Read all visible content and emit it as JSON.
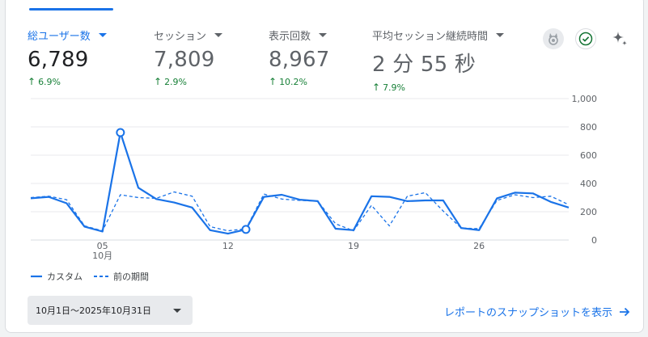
{
  "metrics": [
    {
      "label": "総ユーザー数",
      "value": "6,789",
      "change": "6.9%",
      "active": true
    },
    {
      "label": "セッション",
      "value": "7,809",
      "change": "2.9%",
      "active": false
    },
    {
      "label": "表示回数",
      "value": "8,967",
      "change": "10.2%",
      "active": false
    },
    {
      "label": "平均セッション継続時間",
      "value": "2 分 55 秒",
      "change": "7.9%",
      "active": false
    }
  ],
  "icons": [
    "insights-badge-icon",
    "check-circle-icon",
    "sparkle-icon"
  ],
  "colors": {
    "accent": "#1a73e8",
    "positive": "#188038",
    "grid": "#e8eaed"
  },
  "chart_data": {
    "type": "line",
    "x_tick_labels": [
      "05",
      "12",
      "19",
      "26"
    ],
    "x_month_label": "10月",
    "y_tick_labels": [
      "0",
      "200",
      "400",
      "600",
      "800",
      "1,000"
    ],
    "ylim": [
      0,
      1000
    ],
    "grid": true,
    "legend_position": "bottom-left",
    "x": [
      1,
      2,
      3,
      4,
      5,
      6,
      7,
      8,
      9,
      10,
      11,
      12,
      13,
      14,
      15,
      16,
      17,
      18,
      19,
      20,
      21,
      22,
      23,
      24,
      25,
      26,
      27,
      28,
      29,
      30,
      31
    ],
    "series": [
      {
        "name": "カスタム",
        "style": "solid",
        "color": "#1a73e8",
        "values": [
          295,
          305,
          260,
          95,
          60,
          760,
          370,
          290,
          265,
          230,
          70,
          45,
          75,
          305,
          320,
          285,
          275,
          80,
          70,
          310,
          305,
          275,
          280,
          280,
          85,
          70,
          295,
          335,
          330,
          270,
          230
        ],
        "highlighted_points": [
          6,
          13
        ]
      },
      {
        "name": "前の期間",
        "style": "dashed",
        "color": "#1a73e8",
        "values": [
          300,
          310,
          285,
          100,
          65,
          320,
          300,
          295,
          340,
          310,
          95,
          65,
          80,
          325,
          290,
          280,
          275,
          115,
          65,
          245,
          100,
          310,
          335,
          205,
          85,
          80,
          280,
          320,
          300,
          310,
          250
        ]
      }
    ]
  },
  "footer": {
    "date_range": "10月1日～2025年10月31日",
    "snapshot_link": "レポートのスナップショットを表示"
  }
}
